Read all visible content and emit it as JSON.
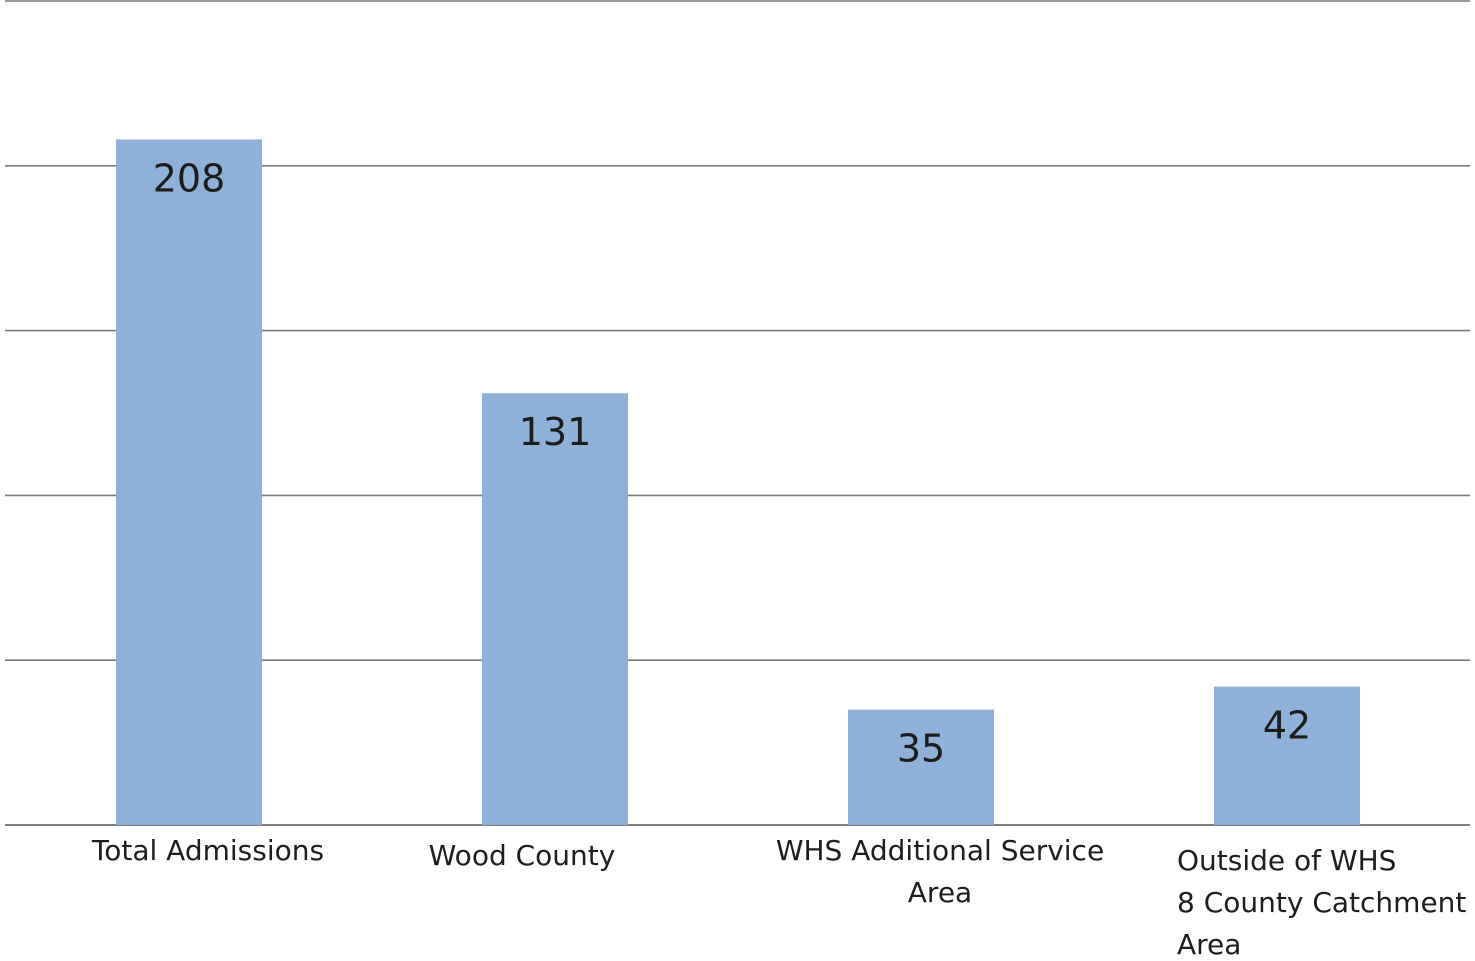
{
  "chart_data": {
    "type": "bar",
    "title": "",
    "xlabel": "",
    "ylabel": "",
    "categories": [
      "Total Admissions",
      "Wood County",
      "WHS Additional Service Area",
      "Outside of WHS 8 County Catchment Area"
    ],
    "category_lines": [
      [
        "Total Admissions"
      ],
      [
        "Wood County"
      ],
      [
        "WHS Additional Service",
        "Area"
      ],
      [
        "Outside of WHS",
        "8 County Catchment",
        "Area"
      ]
    ],
    "values": [
      208,
      131,
      35,
      42
    ],
    "value_labels": [
      "208",
      "131",
      "35",
      "42"
    ],
    "ylim": [
      0,
      250
    ],
    "gridlines": [
      0,
      50,
      100,
      150,
      200,
      250
    ],
    "grid": true,
    "legend": "none",
    "bar_color": "#8fb0d8",
    "grid_color": "#7a7a7a"
  }
}
